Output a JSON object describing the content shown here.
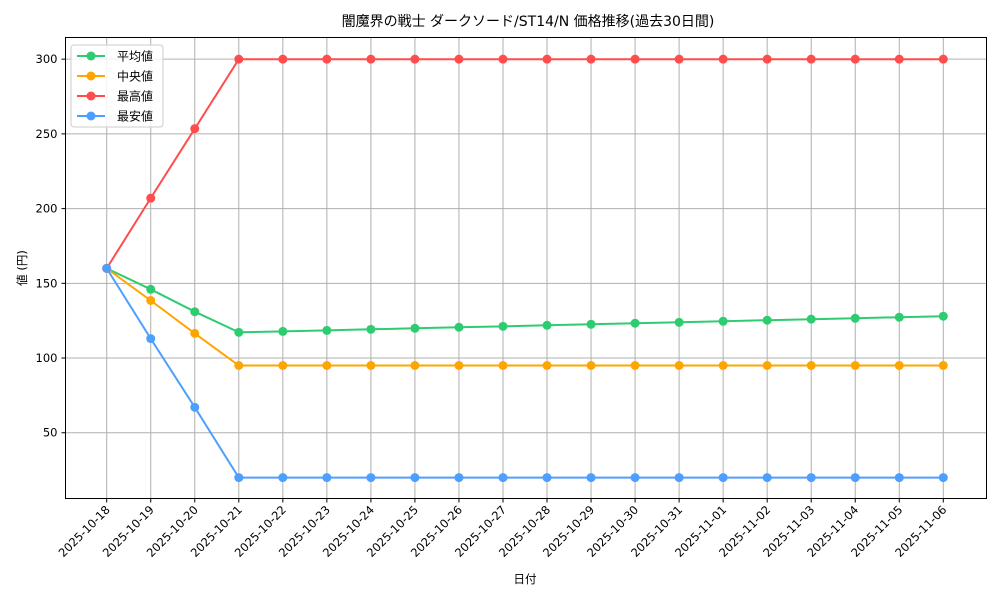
{
  "chart_data": {
    "type": "line",
    "title": "闇魔界の戦士 ダークソード/ST14/N 価格推移(過去30日間)",
    "xlabel": "日付",
    "ylabel": "値 (円)",
    "ylim": [
      6,
      314.5
    ],
    "yticks": [
      50,
      100,
      150,
      200,
      250,
      300
    ],
    "grid": true,
    "legend_position": "upper left",
    "x": [
      "2025-10-18",
      "2025-10-19",
      "2025-10-20",
      "2025-10-21",
      "2025-10-22",
      "2025-10-23",
      "2025-10-24",
      "2025-10-25",
      "2025-10-26",
      "2025-10-27",
      "2025-10-28",
      "2025-10-29",
      "2025-10-30",
      "2025-10-31",
      "2025-11-01",
      "2025-11-02",
      "2025-11-03",
      "2025-11-04",
      "2025-11-05",
      "2025-11-06"
    ],
    "series": [
      {
        "name": "平均値",
        "color": "#2ecc71",
        "values": [
          160,
          146,
          131,
          117.2,
          117.8,
          118.5,
          119.2,
          119.9,
          120.6,
          121.2,
          121.9,
          122.6,
          123.3,
          123.9,
          124.6,
          125.3,
          126.0,
          126.6,
          127.3,
          128.0
        ]
      },
      {
        "name": "中央値",
        "color": "#ffa500",
        "values": [
          160,
          138.5,
          116.5,
          95,
          95,
          95,
          95,
          95,
          95,
          95,
          95,
          95,
          95,
          95,
          95,
          95,
          95,
          95,
          95,
          95
        ]
      },
      {
        "name": "最高値",
        "color": "#ff4d4d",
        "values": [
          160,
          207,
          253.5,
          300,
          300,
          300,
          300,
          300,
          300,
          300,
          300,
          300,
          300,
          300,
          300,
          300,
          300,
          300,
          300,
          300
        ]
      },
      {
        "name": "最安値",
        "color": "#4d9fff",
        "values": [
          160,
          113,
          67,
          20,
          20,
          20,
          20,
          20,
          20,
          20,
          20,
          20,
          20,
          20,
          20,
          20,
          20,
          20,
          20,
          20
        ]
      }
    ]
  },
  "layout_colors": {
    "grid": "#b0b0b0",
    "axis": "#000000",
    "legend_border": "#cccccc"
  }
}
